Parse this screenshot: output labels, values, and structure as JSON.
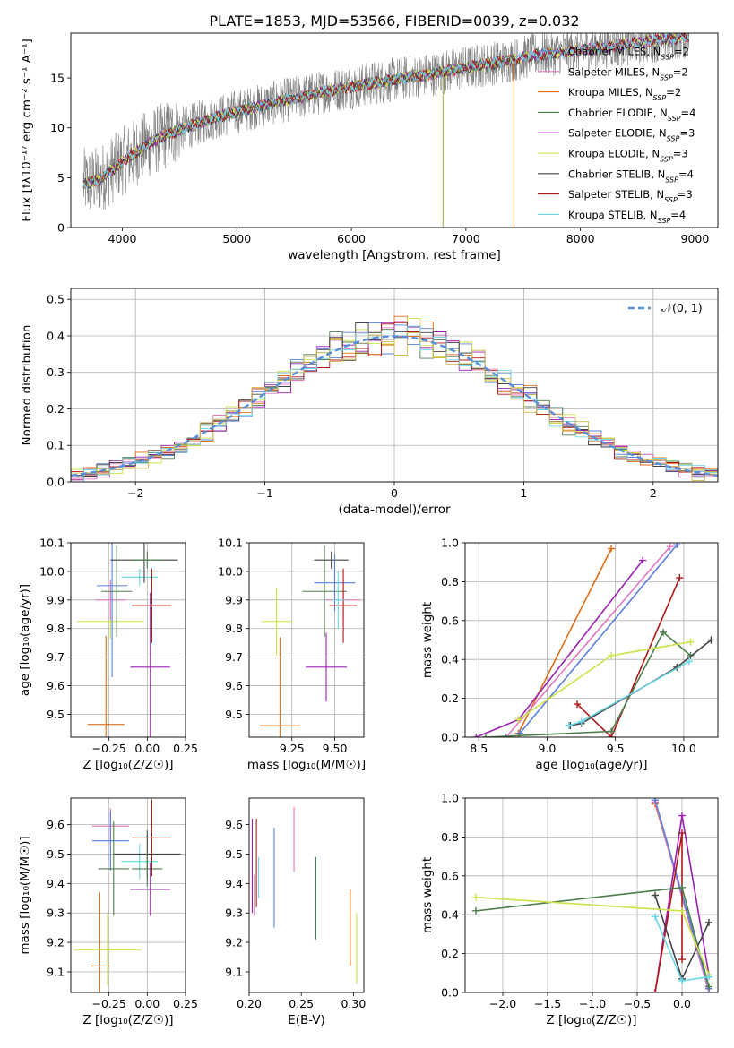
{
  "figure": {
    "title": "PLATE=1853, MJD=53566, FIBERID=0039, z=0.032"
  },
  "chart_data": [
    {
      "id": "spectrum",
      "type": "line",
      "xlabel": "wavelength [Angstrom, rest frame]",
      "ylabel": "Flux [fλ10⁻¹⁷ erg cm⁻² s⁻¹ A⁻¹]",
      "xlim": [
        3550,
        9200
      ],
      "ylim": [
        0,
        19.5
      ],
      "xticks": [
        4000,
        5000,
        6000,
        7000,
        8000,
        9000
      ],
      "yticks": [
        0,
        5,
        10,
        15
      ],
      "grid": false,
      "legend_position": "right",
      "legend": [
        {
          "label": "Chabrier MILES, N_SSP=2",
          "color": "#5b7fdd"
        },
        {
          "label": "Salpeter MILES, N_SSP=2",
          "color": "#e377c2"
        },
        {
          "label": "Kroupa MILES, N_SSP=2",
          "color": "#e06e16"
        },
        {
          "label": "Chabrier ELODIE, N_SSP=4",
          "color": "#4d7f4d"
        },
        {
          "label": "Salpeter ELODIE, N_SSP=3",
          "color": "#9a20b0"
        },
        {
          "label": "Kroupa ELODIE, N_SSP=3",
          "color": "#cde24a"
        },
        {
          "label": "Chabrier STELIB, N_SSP=4",
          "color": "#444444"
        },
        {
          "label": "Salpeter STELIB, N_SSP=3",
          "color": "#b01818"
        },
        {
          "label": "Kroupa STELIB, N_SSP=4",
          "color": "#6ad6e6"
        }
      ],
      "data_color": "#808080",
      "model_continuum": [
        [
          3650,
          4.4
        ],
        [
          3800,
          4.8
        ],
        [
          4000,
          6.6
        ],
        [
          4200,
          8.2
        ],
        [
          4400,
          9.4
        ],
        [
          4600,
          10.2
        ],
        [
          4800,
          11.0
        ],
        [
          5000,
          11.6
        ],
        [
          5200,
          12.2
        ],
        [
          5400,
          12.7
        ],
        [
          5600,
          13.2
        ],
        [
          5800,
          13.7
        ],
        [
          6000,
          14.1
        ],
        [
          6200,
          14.5
        ],
        [
          6400,
          14.9
        ],
        [
          6600,
          15.2
        ],
        [
          6800,
          15.6
        ],
        [
          7000,
          16.0
        ],
        [
          7200,
          16.4
        ],
        [
          7400,
          16.8
        ],
        [
          7600,
          17.3
        ],
        [
          7800,
          17.5
        ],
        [
          8000,
          17.8
        ],
        [
          8200,
          18.1
        ],
        [
          8400,
          18.4
        ],
        [
          8600,
          18.7
        ],
        [
          8800,
          19.0
        ],
        [
          9000,
          19.2
        ],
        [
          9200,
          19.4
        ]
      ],
      "model_end_wavelength": 7420,
      "long_model_end_wavelength": 8950
    },
    {
      "id": "residuals",
      "type": "histogram",
      "xlabel": "(data-model)/error",
      "ylabel": "Normed distribution",
      "xlim": [
        -2.5,
        2.5
      ],
      "ylim": [
        0,
        0.53
      ],
      "xticks": [
        -2,
        -1,
        0,
        1,
        2
      ],
      "yticks": [
        0.0,
        0.1,
        0.2,
        0.3,
        0.4,
        0.5
      ],
      "grid": true,
      "legend_position": "top-right",
      "reference": {
        "label": "𝒩(0, 1)",
        "color": "#5b8fd9",
        "mean": 0,
        "sigma": 1
      }
    },
    {
      "id": "age_vs_Z",
      "type": "errorbar",
      "xlabel": "Z [log₁₀(Z/Z☉)]",
      "ylabel": "age  [log₁₀(age/yr)]",
      "xlim": [
        -0.5,
        0.25
      ],
      "ylim": [
        9.42,
        10.1
      ],
      "xticks": [
        -0.25,
        0.0,
        0.25
      ],
      "yticks": [
        9.5,
        9.6,
        9.7,
        9.8,
        9.9,
        10.0,
        10.1
      ],
      "grid": true,
      "points": [
        {
          "x": -0.27,
          "y": 9.465,
          "xerr": 0.12,
          "yerr": 0.31,
          "color": "#e06e16"
        },
        {
          "x": -0.24,
          "y": 9.825,
          "xerr": 0.22,
          "yerr": 0.06,
          "color": "#cde24a"
        },
        {
          "x": -0.24,
          "y": 9.9,
          "xerr": 0.1,
          "yerr": 0.07,
          "color": "#e377c2"
        },
        {
          "x": -0.23,
          "y": 9.95,
          "xerr": 0.1,
          "yerr": 0.32,
          "color": "#5b7fdd"
        },
        {
          "x": -0.2,
          "y": 9.93,
          "xerr": 0.1,
          "yerr": 0.16,
          "color": "#4d7f4d"
        },
        {
          "x": -0.05,
          "y": 9.98,
          "xerr": 0.12,
          "yerr": 0.03,
          "color": "#6ad6e6"
        },
        {
          "x": -0.02,
          "y": 10.04,
          "xerr": 0.22,
          "yerr": 0.08,
          "color": "#444444"
        },
        {
          "x": 0.0,
          "y": 10.04,
          "xerr": 0.1,
          "yerr": 0.03,
          "color": "#4d7f4d"
        },
        {
          "x": 0.03,
          "y": 9.88,
          "xerr": 0.13,
          "yerr": 0.13,
          "color": "#b01818"
        },
        {
          "x": 0.02,
          "y": 9.665,
          "xerr": 0.13,
          "yerr": 0.26,
          "color": "#9a20b0"
        }
      ]
    },
    {
      "id": "age_vs_mass",
      "type": "errorbar",
      "xlabel": "mass [log₁₀(M/M☉)]",
      "ylabel": "",
      "xlim": [
        9.0,
        9.67
      ],
      "ylim": [
        9.42,
        10.1
      ],
      "xticks": [
        9.25,
        9.5
      ],
      "yticks": [
        9.5,
        9.6,
        9.7,
        9.8,
        9.9,
        10.0,
        10.1
      ],
      "grid": true,
      "points": [
        {
          "x": 9.18,
          "y": 9.46,
          "xerr": 0.12,
          "yerr": 0.31,
          "color": "#e06e16"
        },
        {
          "x": 9.16,
          "y": 9.825,
          "xerr": 0.09,
          "yerr": 0.12,
          "color": "#cde24a"
        },
        {
          "x": 9.44,
          "y": 9.93,
          "xerr": 0.13,
          "yerr": 0.16,
          "color": "#4d7f4d"
        },
        {
          "x": 9.48,
          "y": 10.04,
          "xerr": 0.1,
          "yerr": 0.03,
          "color": "#444444"
        },
        {
          "x": 9.5,
          "y": 9.96,
          "xerr": 0.12,
          "yerr": 0.1,
          "color": "#5b7fdd"
        },
        {
          "x": 9.55,
          "y": 9.9,
          "xerr": 0.1,
          "yerr": 0.07,
          "color": "#e377c2"
        },
        {
          "x": 9.55,
          "y": 9.88,
          "xerr": 0.08,
          "yerr": 0.13,
          "color": "#b01818"
        },
        {
          "x": 9.45,
          "y": 9.665,
          "xerr": 0.12,
          "yerr": 0.12,
          "color": "#9a20b0"
        },
        {
          "x": 9.52,
          "y": 9.9,
          "xerr": 0.04,
          "yerr": 0.1,
          "color": "#6ad6e6"
        }
      ]
    },
    {
      "id": "mass_weight_vs_age",
      "type": "line",
      "xlabel": "age  [log₁₀(age/yr)]",
      "ylabel": "mass weight",
      "xlim": [
        8.4,
        10.25
      ],
      "ylim": [
        0.0,
        1.0
      ],
      "xticks": [
        8.5,
        9.0,
        9.5,
        10.0
      ],
      "yticks": [
        0.0,
        0.2,
        0.4,
        0.6,
        0.8,
        1.0
      ],
      "grid": true,
      "series": [
        {
          "color": "#e06e16",
          "x": [
            8.79,
            9.47
          ],
          "y": [
            0.02,
            0.97
          ]
        },
        {
          "color": "#e377c2",
          "x": [
            8.7,
            9.9
          ],
          "y": [
            0.0,
            0.98
          ]
        },
        {
          "color": "#5b7fdd",
          "x": [
            8.8,
            9.95
          ],
          "y": [
            0.02,
            0.99
          ]
        },
        {
          "color": "#9a20b0",
          "x": [
            8.48,
            8.79,
            9.7
          ],
          "y": [
            0.0,
            0.09,
            0.91
          ]
        },
        {
          "color": "#b01818",
          "x": [
            9.22,
            9.47,
            9.97
          ],
          "y": [
            0.17,
            0.0,
            0.82
          ]
        },
        {
          "color": "#4d7f4d",
          "x": [
            8.55,
            9.47,
            9.85,
            10.05
          ],
          "y": [
            0.0,
            0.03,
            0.54,
            0.42
          ]
        },
        {
          "color": "#444444",
          "x": [
            9.17,
            9.25,
            9.95,
            10.2
          ],
          "y": [
            0.06,
            0.07,
            0.36,
            0.5
          ]
        },
        {
          "color": "#cde24a",
          "x": [
            8.79,
            9.47,
            10.05
          ],
          "y": [
            0.09,
            0.42,
            0.49
          ]
        },
        {
          "color": "#6ad6e6",
          "x": [
            9.16,
            9.25,
            10.04
          ],
          "y": [
            0.06,
            0.08,
            0.39
          ]
        }
      ]
    },
    {
      "id": "mass_vs_Z",
      "type": "errorbar",
      "xlabel": "Z [log₁₀(Z/Z☉)]",
      "ylabel": "mass [log₁₀(M/M☉)]",
      "xlim": [
        -0.5,
        0.25
      ],
      "ylim": [
        9.03,
        9.69
      ],
      "xticks": [
        -0.25,
        0.0,
        0.25
      ],
      "yticks": [
        9.1,
        9.2,
        9.3,
        9.4,
        9.5,
        9.6
      ],
      "grid": true,
      "points": [
        {
          "x": -0.31,
          "y": 9.12,
          "xerr": 0.06,
          "yerr": 0.25,
          "color": "#e06e16"
        },
        {
          "x": -0.26,
          "y": 9.175,
          "xerr": 0.22,
          "yerr": 0.12,
          "color": "#cde24a"
        },
        {
          "x": -0.24,
          "y": 9.595,
          "xerr": 0.12,
          "yerr": 0.06,
          "color": "#e377c2"
        },
        {
          "x": -0.24,
          "y": 9.545,
          "xerr": 0.12,
          "yerr": 0.1,
          "color": "#5b7fdd"
        },
        {
          "x": -0.22,
          "y": 9.45,
          "xerr": 0.1,
          "yerr": 0.16,
          "color": "#4d7f4d"
        },
        {
          "x": -0.05,
          "y": 9.475,
          "xerr": 0.12,
          "yerr": 0.06,
          "color": "#6ad6e6"
        },
        {
          "x": 0.0,
          "y": 9.5,
          "xerr": 0.22,
          "yerr": 0.08,
          "color": "#444444"
        },
        {
          "x": 0.0,
          "y": 9.45,
          "xerr": 0.1,
          "yerr": 0.06,
          "color": "#4d7f4d"
        },
        {
          "x": 0.03,
          "y": 9.555,
          "xerr": 0.13,
          "yerr": 0.13,
          "color": "#b01818"
        },
        {
          "x": 0.02,
          "y": 9.38,
          "xerr": 0.13,
          "yerr": 0.09,
          "color": "#9a20b0"
        }
      ]
    },
    {
      "id": "mass_vs_ebv",
      "type": "errorbar",
      "xlabel": "E(B-V)",
      "ylabel": "",
      "xlim": [
        0.2,
        0.31
      ],
      "ylim": [
        9.03,
        9.69
      ],
      "xticks": [
        0.2,
        0.25,
        0.3
      ],
      "yticks": [
        9.1,
        9.2,
        9.3,
        9.4,
        9.5,
        9.6
      ],
      "grid": false,
      "points": [
        {
          "x": 0.203,
          "y": 9.46,
          "yerr": 0.16,
          "color": "#9a20b0"
        },
        {
          "x": 0.205,
          "y": 9.36,
          "yerr": 0.07,
          "color": "#e377c2"
        },
        {
          "x": 0.207,
          "y": 9.47,
          "yerr": 0.15,
          "color": "#b01818"
        },
        {
          "x": 0.209,
          "y": 9.42,
          "yerr": 0.07,
          "color": "#6ad6e6"
        },
        {
          "x": 0.224,
          "y": 9.42,
          "yerr": 0.17,
          "color": "#5b7fdd"
        },
        {
          "x": 0.243,
          "y": 9.55,
          "yerr": 0.11,
          "color": "#e377c2"
        },
        {
          "x": 0.264,
          "y": 9.35,
          "yerr": 0.14,
          "color": "#4d7f4d"
        },
        {
          "x": 0.297,
          "y": 9.25,
          "yerr": 0.13,
          "color": "#e06e16"
        },
        {
          "x": 0.303,
          "y": 9.18,
          "yerr": 0.12,
          "color": "#cde24a"
        }
      ]
    },
    {
      "id": "mass_weight_vs_Z",
      "type": "line",
      "xlabel": "Z [log₁₀(Z/Z☉)]",
      "ylabel": "mass weight",
      "xlim": [
        -2.42,
        0.4
      ],
      "ylim": [
        0.0,
        1.0
      ],
      "xticks": [
        -2.0,
        -1.5,
        -1.0,
        -0.5,
        0.0
      ],
      "yticks": [
        0.0,
        0.2,
        0.4,
        0.6,
        0.8,
        1.0
      ],
      "grid": true,
      "series": [
        {
          "color": "#e06e16",
          "x": [
            -0.3,
            0.3
          ],
          "y": [
            0.97,
            0.02
          ]
        },
        {
          "color": "#e377c2",
          "x": [
            -0.3,
            0.3
          ],
          "y": [
            0.98,
            0.0
          ]
        },
        {
          "color": "#5b7fdd",
          "x": [
            -0.3,
            0.3
          ],
          "y": [
            0.99,
            0.02
          ]
        },
        {
          "color": "#9a20b0",
          "x": [
            -0.3,
            0.0,
            0.3
          ],
          "y": [
            0.0,
            0.91,
            0.09
          ]
        },
        {
          "color": "#b01818",
          "x": [
            -0.3,
            0.0,
            0.0
          ],
          "y": [
            0.0,
            0.82,
            0.17
          ]
        },
        {
          "color": "#4d7f4d",
          "x": [
            -2.3,
            0.0,
            0.3
          ],
          "y": [
            0.42,
            0.54,
            0.03
          ]
        },
        {
          "color": "#444444",
          "x": [
            -0.3,
            0.0,
            0.3
          ],
          "y": [
            0.5,
            0.07,
            0.36
          ]
        },
        {
          "color": "#cde24a",
          "x": [
            -2.3,
            0.0,
            0.3
          ],
          "y": [
            0.49,
            0.42,
            0.09
          ]
        },
        {
          "color": "#6ad6e6",
          "x": [
            -0.3,
            0.0,
            0.3
          ],
          "y": [
            0.39,
            0.06,
            0.08
          ]
        }
      ]
    }
  ]
}
